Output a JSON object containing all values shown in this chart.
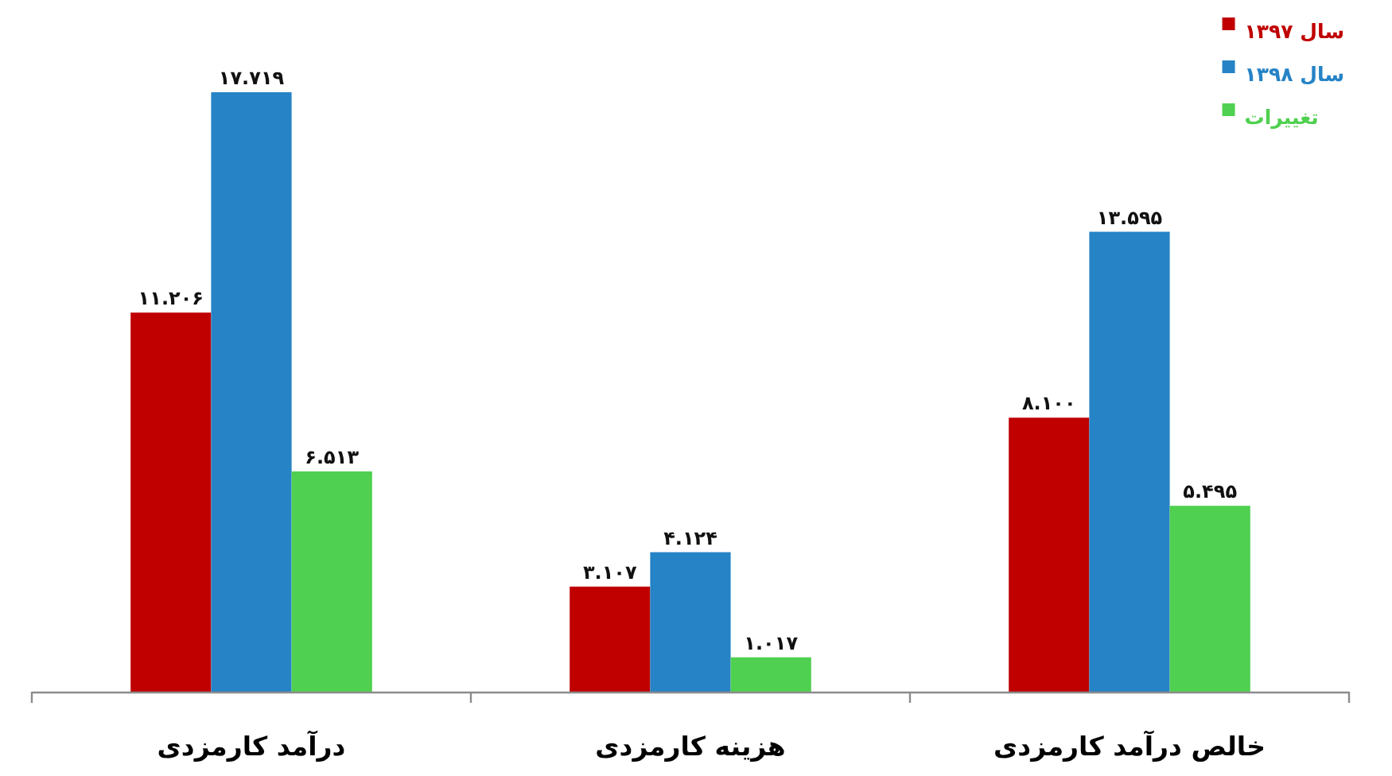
{
  "chart_data": {
    "type": "bar",
    "categories": [
      "درآمد کارمزدی",
      "هزینه کارمزدی",
      "خالص درآمد کارمزدی"
    ],
    "series": [
      {
        "name": "سال ۱۳۹۷",
        "color": "#c00000",
        "values": [
          11.206,
          3.107,
          8.1
        ],
        "value_labels": [
          "۱۱.۲۰۶",
          "۳.۱۰۷",
          "۸.۱۰۰"
        ]
      },
      {
        "name": "سال ۱۳۹۸",
        "color": "#2683c6",
        "values": [
          17.719,
          4.124,
          13.595
        ],
        "value_labels": [
          "۱۷.۷۱۹",
          "۴.۱۲۴",
          "۱۳.۵۹۵"
        ]
      },
      {
        "name": "تغییرات",
        "color": "#50d050",
        "values": [
          6.513,
          1.017,
          5.495
        ],
        "value_labels": [
          "۶.۵۱۳",
          "۱.۰۱۷",
          "۵.۴۹۵"
        ]
      }
    ],
    "tick_labels": "x",
    "legend": "top right"
  }
}
